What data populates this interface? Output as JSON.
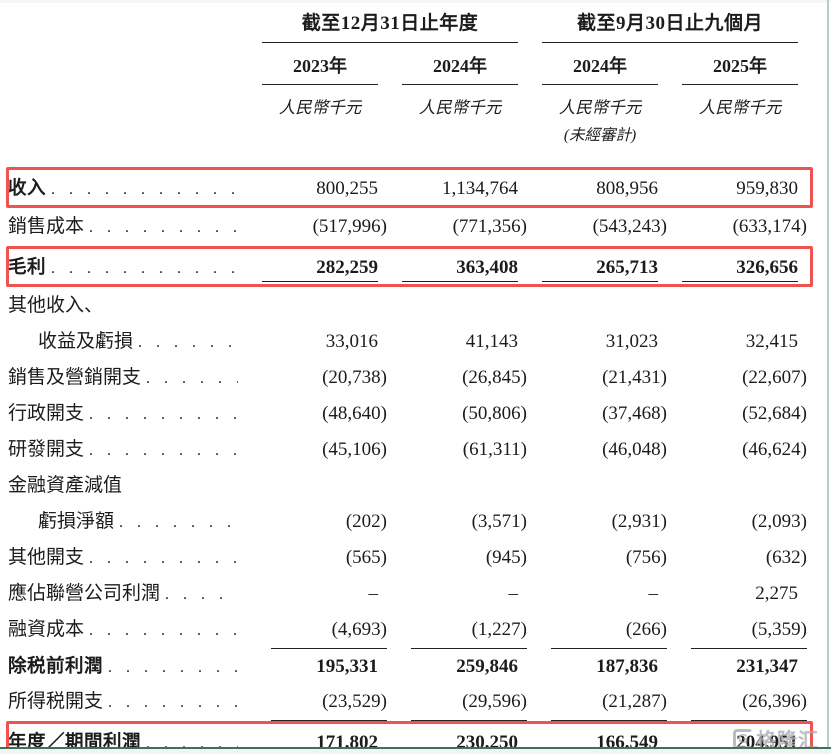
{
  "colors": {
    "highlight_border": "#ef5350",
    "frame_green_dark": "#3f7059",
    "frame_green_light": "#b7cfc2",
    "text": "#1c1c1c",
    "watermark_gray": "#a9aeb1"
  },
  "header": {
    "groups": [
      {
        "title": "截至12月31日止年度",
        "years": [
          {
            "label": "2023年",
            "unit": "人民幣千元",
            "note": ""
          },
          {
            "label": "2024年",
            "unit": "人民幣千元",
            "note": ""
          }
        ]
      },
      {
        "title": "截至9月30日止九個月",
        "years": [
          {
            "label": "2024年",
            "unit": "人民幣千元",
            "note": "(未經審計)"
          },
          {
            "label": "2025年",
            "unit": "人民幣千元",
            "note": ""
          }
        ]
      }
    ]
  },
  "table": {
    "dot_leader": ". . . . . . . . . . . . . . . . . . . . . . . . . . . . . .",
    "rows": [
      {
        "label": "收入",
        "label_bold": true,
        "values_bold": false,
        "boxed": true,
        "dots": true,
        "underline": "none",
        "values": [
          "800,255",
          "1,134,764",
          "808,956",
          "959,830"
        ]
      },
      {
        "label": "銷售成本",
        "label_bold": false,
        "values_bold": false,
        "boxed": false,
        "dots": true,
        "underline": "none",
        "values": [
          "(517,996)",
          "(771,356)",
          "(543,243)",
          "(633,174)"
        ]
      },
      {
        "label": "毛利",
        "label_bold": true,
        "values_bold": true,
        "boxed": true,
        "dots": true,
        "underline": "single",
        "values": [
          "282,259",
          "363,408",
          "265,713",
          "326,656"
        ]
      },
      {
        "label": "其他收入、",
        "label_bold": false,
        "values_bold": false,
        "boxed": false,
        "dots": false,
        "underline": "none",
        "values": [
          "",
          "",
          "",
          ""
        ]
      },
      {
        "label": "收益及虧損",
        "indent": true,
        "label_bold": false,
        "values_bold": false,
        "boxed": false,
        "dots": true,
        "underline": "none",
        "values": [
          "33,016",
          "41,143",
          "31,023",
          "32,415"
        ]
      },
      {
        "label": "銷售及營銷開支",
        "label_bold": false,
        "values_bold": false,
        "boxed": false,
        "dots": true,
        "underline": "none",
        "values": [
          "(20,738)",
          "(26,845)",
          "(21,431)",
          "(22,607)"
        ]
      },
      {
        "label": "行政開支",
        "label_bold": false,
        "values_bold": false,
        "boxed": false,
        "dots": true,
        "underline": "none",
        "values": [
          "(48,640)",
          "(50,806)",
          "(37,468)",
          "(52,684)"
        ]
      },
      {
        "label": "研發開支",
        "label_bold": false,
        "values_bold": false,
        "boxed": false,
        "dots": true,
        "underline": "none",
        "values": [
          "(45,106)",
          "(61,311)",
          "(46,048)",
          "(46,624)"
        ]
      },
      {
        "label": "金融資產減值",
        "label_bold": false,
        "values_bold": false,
        "boxed": false,
        "dots": false,
        "underline": "none",
        "values": [
          "",
          "",
          "",
          ""
        ]
      },
      {
        "label": "虧損淨額",
        "indent": true,
        "label_bold": false,
        "values_bold": false,
        "boxed": false,
        "dots": true,
        "underline": "none",
        "values": [
          "(202)",
          "(3,571)",
          "(2,931)",
          "(2,093)"
        ]
      },
      {
        "label": "其他開支",
        "label_bold": false,
        "values_bold": false,
        "boxed": false,
        "dots": true,
        "underline": "none",
        "values": [
          "(565)",
          "(945)",
          "(756)",
          "(632)"
        ]
      },
      {
        "label": "應佔聯營公司利潤 ",
        "label_bold": false,
        "values_bold": false,
        "boxed": false,
        "dots": true,
        "underline": "none",
        "values": [
          "–",
          "–",
          "–",
          "2,275"
        ]
      },
      {
        "label": "融資成本",
        "label_bold": false,
        "values_bold": false,
        "boxed": false,
        "dots": true,
        "underline": "single",
        "values": [
          "(4,693)",
          "(1,227)",
          "(266)",
          "(5,359)"
        ]
      },
      {
        "label": "除税前利潤",
        "label_bold": true,
        "values_bold": true,
        "boxed": false,
        "dots": true,
        "underline": "none",
        "values": [
          "195,331",
          "259,846",
          "187,836",
          "231,347"
        ]
      },
      {
        "label": "所得税開支",
        "label_bold": false,
        "values_bold": false,
        "boxed": false,
        "dots": true,
        "underline": "single",
        "values": [
          "(23,529)",
          "(29,596)",
          "(21,287)",
          "(26,396)"
        ]
      },
      {
        "label": "年度／期間利潤",
        "label_bold": true,
        "values_bold": true,
        "boxed": true,
        "dots": true,
        "underline": "double",
        "values": [
          "171,802",
          "230,250",
          "166,549",
          "204,951"
        ]
      }
    ]
  },
  "watermark": {
    "logo_letter": "G",
    "name": "格隆汇"
  }
}
